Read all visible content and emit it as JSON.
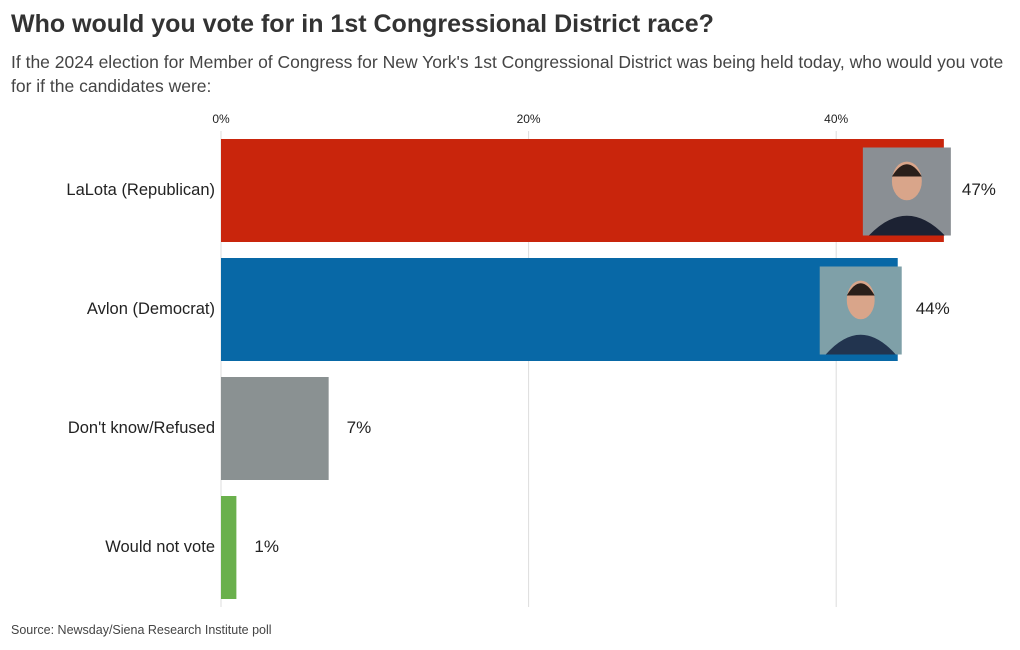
{
  "chart_data": {
    "type": "bar",
    "orientation": "horizontal",
    "title": "Who would you vote for in 1st Congressional District race?",
    "subtitle": "If the 2024 election for Member of Congress for New York's 1st Congressional District was being held today, who would you vote for if the candidates were:",
    "source": "Source: Newsday/Siena Research Institute poll",
    "categories": [
      "LaLota (Republican)",
      "Avlon (Democrat)",
      "Don't know/Refused",
      "Would not vote"
    ],
    "values": [
      47,
      44,
      7,
      1
    ],
    "value_labels": [
      "47%",
      "44%",
      "7%",
      "1%"
    ],
    "colors": [
      "#c9250c",
      "#0868a6",
      "#8a9192",
      "#6ab04c"
    ],
    "xlim": [
      0,
      50
    ],
    "xticks": [
      {
        "value": 0,
        "label": "0%"
      },
      {
        "value": 20,
        "label": "20%"
      },
      {
        "value": 40,
        "label": "40%"
      }
    ],
    "grid": true
  }
}
